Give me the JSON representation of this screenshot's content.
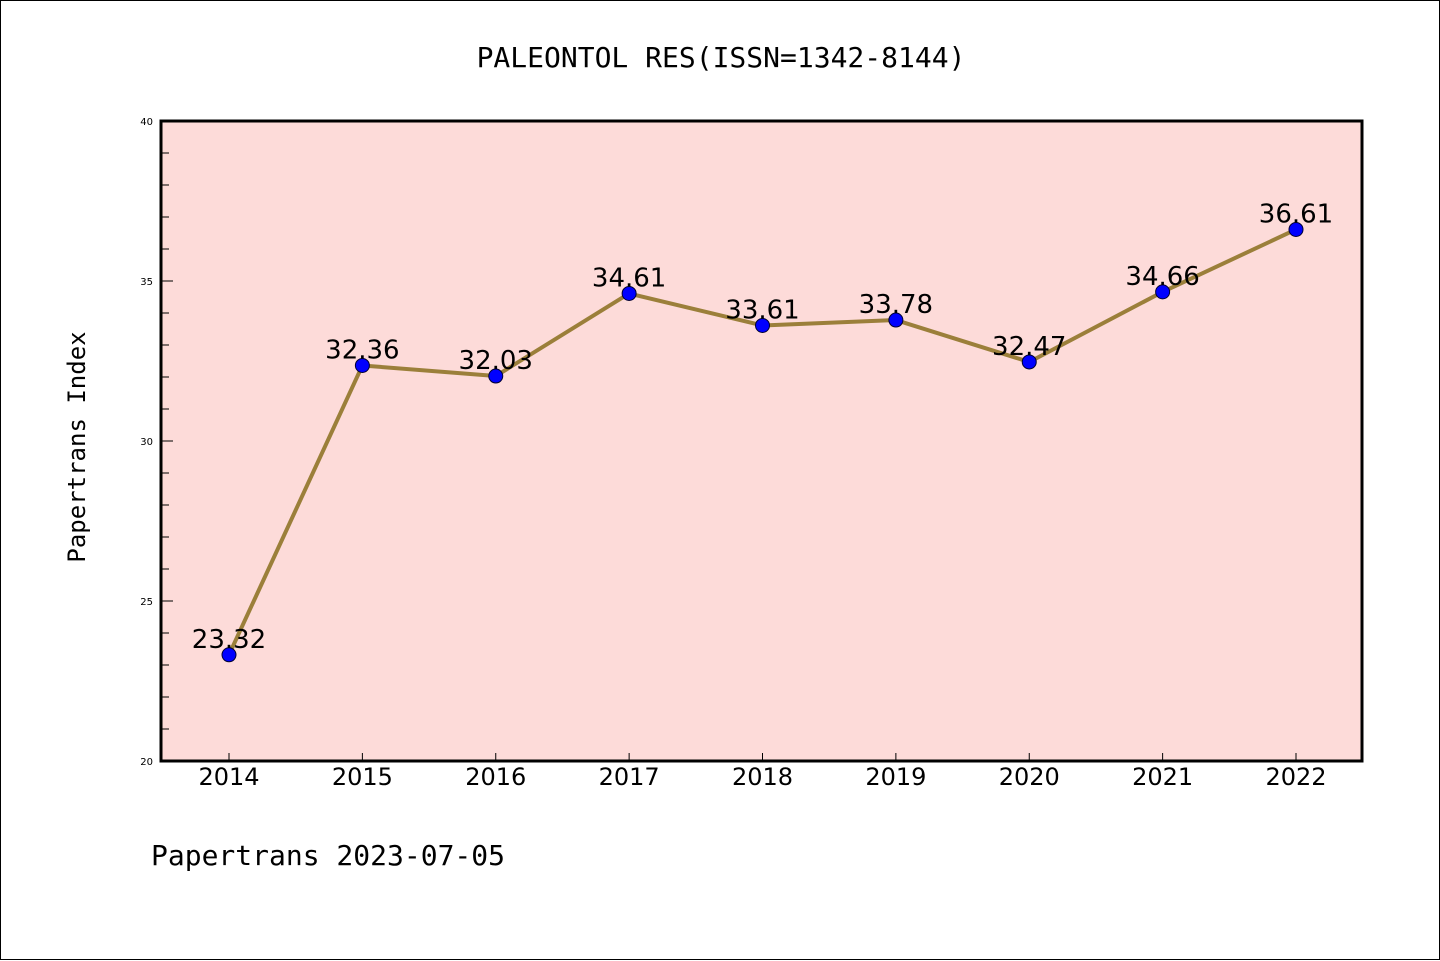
{
  "chart_data": {
    "type": "line",
    "title": "PALEONTOL RES(ISSN=1342-8144)",
    "xlabel": "",
    "ylabel": "Papertrans Index",
    "categories": [
      "2014",
      "2015",
      "2016",
      "2017",
      "2018",
      "2019",
      "2020",
      "2021",
      "2022"
    ],
    "series": [
      {
        "values": [
          23.32,
          32.36,
          32.03,
          34.61,
          33.61,
          33.78,
          32.47,
          34.66,
          36.61
        ],
        "labels": [
          "23.32",
          "32.36",
          "32.03",
          "34.61",
          "33.61",
          "33.78",
          "32.47",
          "34.66",
          "36.61"
        ]
      }
    ],
    "ylim": [
      20,
      40
    ],
    "yticks": [
      20,
      25,
      30,
      35,
      40
    ],
    "ytick_labels": [
      "20",
      "25",
      "30",
      "35",
      "40"
    ],
    "grid": false,
    "legend": "none"
  },
  "footer": "Papertrans 2023-07-05",
  "colors": {
    "plot_background": "#fddbd9",
    "line": "#9b7f3a",
    "marker": "#0000ff",
    "axes": "#000000"
  }
}
